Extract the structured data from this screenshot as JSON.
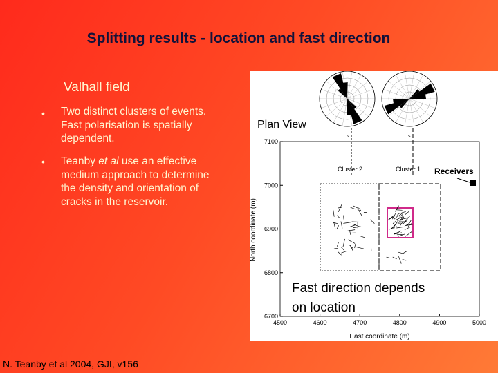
{
  "title": "Splitting results - location and fast direction",
  "subtitle": "Valhall field",
  "bullets": [
    [
      "Two distinct clusters of events. Fast polarisation is spatially dependent."
    ],
    [
      "Teanby ",
      "et al",
      " use an effective medium approach to determine the density and orientation of cracks in the reservoir."
    ]
  ],
  "figure": {
    "label": "Plan View",
    "y_label": "North coordinate (m)",
    "x_label": "East coordinate (m)",
    "yticks": [
      "7100",
      "7000",
      "6900",
      "6800",
      "6700"
    ],
    "xticks": [
      "4500",
      "4600",
      "4700",
      "4800",
      "4900",
      "5000"
    ],
    "clusters": [
      "Cluster 2",
      "Cluster 1"
    ],
    "rose_labels": [
      "s",
      "s"
    ],
    "receivers": "Receivers",
    "note": [
      "Fast direction depends",
      "on location"
    ]
  },
  "footer": "N. Teanby et al 2004, GJI, v156"
}
